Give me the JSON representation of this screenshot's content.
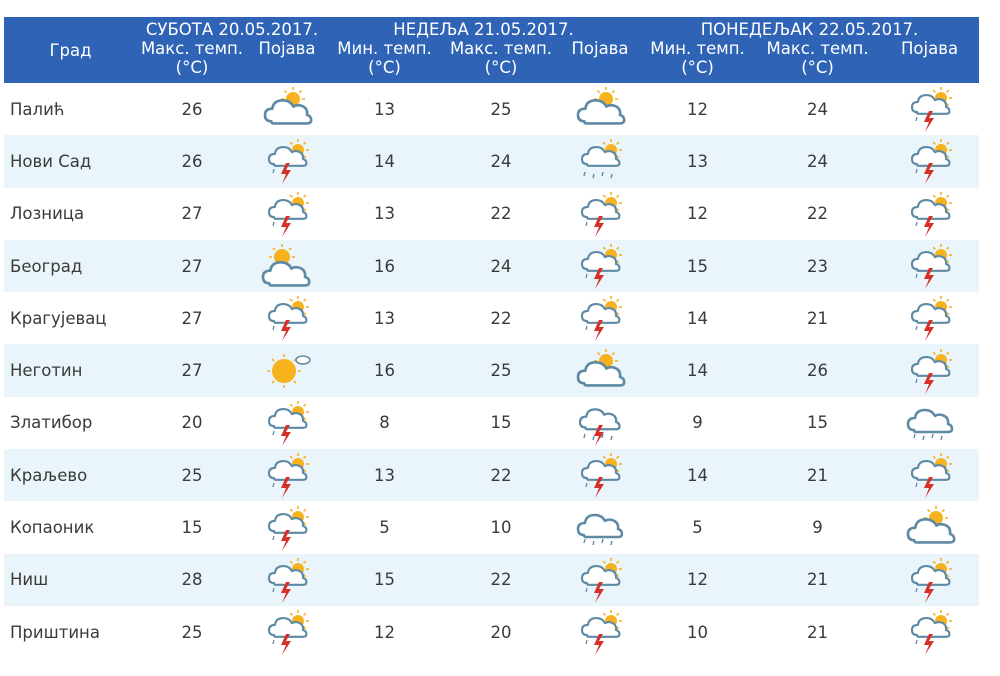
{
  "header": {
    "city": "Град",
    "days": [
      {
        "title": "СУБОТА  20.05.2017.",
        "cols": [
          "Макс. темп. (°C)",
          "Појава"
        ]
      },
      {
        "title": "НЕДЕЉА  21.05.2017.",
        "cols": [
          "Мин. темп. (°C)",
          "Макс. темп. (°C)",
          "Појава"
        ]
      },
      {
        "title": "ПОНЕДЕЉАК  22.05.2017.",
        "cols": [
          "Мин. темп. (°C)",
          "Макс. темп. (°C)",
          "Појава"
        ]
      }
    ]
  },
  "rows": [
    {
      "city": "Палић",
      "sat_max": "26",
      "sat_icon": "partly-cloudy-icon",
      "sun_min": "13",
      "sun_max": "25",
      "sun_icon": "partly-cloudy-icon",
      "mon_min": "12",
      "mon_max": "24",
      "mon_icon": "thunderstorm-icon"
    },
    {
      "city": "Нови Сад",
      "sat_max": "26",
      "sat_icon": "thunderstorm-icon",
      "sun_min": "14",
      "sun_max": "24",
      "sun_icon": "rain-sun-icon",
      "mon_min": "13",
      "mon_max": "24",
      "mon_icon": "thunderstorm-icon"
    },
    {
      "city": "Лозница",
      "sat_max": "27",
      "sat_icon": "thunderstorm-icon",
      "sun_min": "13",
      "sun_max": "22",
      "sun_icon": "thunderstorm-icon",
      "mon_min": "12",
      "mon_max": "22",
      "mon_icon": "thunderstorm-icon"
    },
    {
      "city": "Београд",
      "sat_max": "27",
      "sat_icon": "sun-cloud-icon",
      "sun_min": "16",
      "sun_max": "24",
      "sun_icon": "thunderstorm-icon",
      "mon_min": "15",
      "mon_max": "23",
      "mon_icon": "thunderstorm-icon"
    },
    {
      "city": "Крагујевац",
      "sat_max": "27",
      "sat_icon": "thunderstorm-icon",
      "sun_min": "13",
      "sun_max": "22",
      "sun_icon": "thunderstorm-icon",
      "mon_min": "14",
      "mon_max": "21",
      "mon_icon": "thunderstorm-icon"
    },
    {
      "city": "Неготин",
      "sat_max": "27",
      "sat_icon": "sunny-icon",
      "sun_min": "16",
      "sun_max": "25",
      "sun_icon": "partly-cloudy-icon",
      "mon_min": "14",
      "mon_max": "26",
      "mon_icon": "thunderstorm-icon"
    },
    {
      "city": "Златибор",
      "sat_max": "20",
      "sat_icon": "thunderstorm-icon",
      "sun_min": "8",
      "sun_max": "15",
      "sun_icon": "storm-cloud-icon",
      "mon_min": "9",
      "mon_max": "15",
      "mon_icon": "rain-cloud-icon"
    },
    {
      "city": "Краљево",
      "sat_max": "25",
      "sat_icon": "thunderstorm-icon",
      "sun_min": "13",
      "sun_max": "22",
      "sun_icon": "thunderstorm-icon",
      "mon_min": "14",
      "mon_max": "21",
      "mon_icon": "thunderstorm-icon"
    },
    {
      "city": "Копаоник",
      "sat_max": "15",
      "sat_icon": "thunderstorm-icon",
      "sun_min": "5",
      "sun_max": "10",
      "sun_icon": "rain-cloud-icon",
      "mon_min": "5",
      "mon_max": "9",
      "mon_icon": "partly-cloudy-icon"
    },
    {
      "city": "Ниш",
      "sat_max": "28",
      "sat_icon": "thunderstorm-icon",
      "sun_min": "15",
      "sun_max": "22",
      "sun_icon": "thunderstorm-icon",
      "mon_min": "12",
      "mon_max": "21",
      "mon_icon": "thunderstorm-icon"
    },
    {
      "city": "Приштина",
      "sat_max": "25",
      "sat_icon": "thunderstorm-icon",
      "sun_min": "12",
      "sun_max": "20",
      "sun_icon": "thunderstorm-icon",
      "mon_min": "10",
      "mon_max": "21",
      "mon_icon": "thunderstorm-icon"
    }
  ],
  "colors": {
    "header_bg": "#2f63b5",
    "row_alt_bg": "#eaf5fb",
    "sun": "#f7b21e",
    "cloud": "#5e8aa6",
    "lightning": "#d6302a"
  }
}
